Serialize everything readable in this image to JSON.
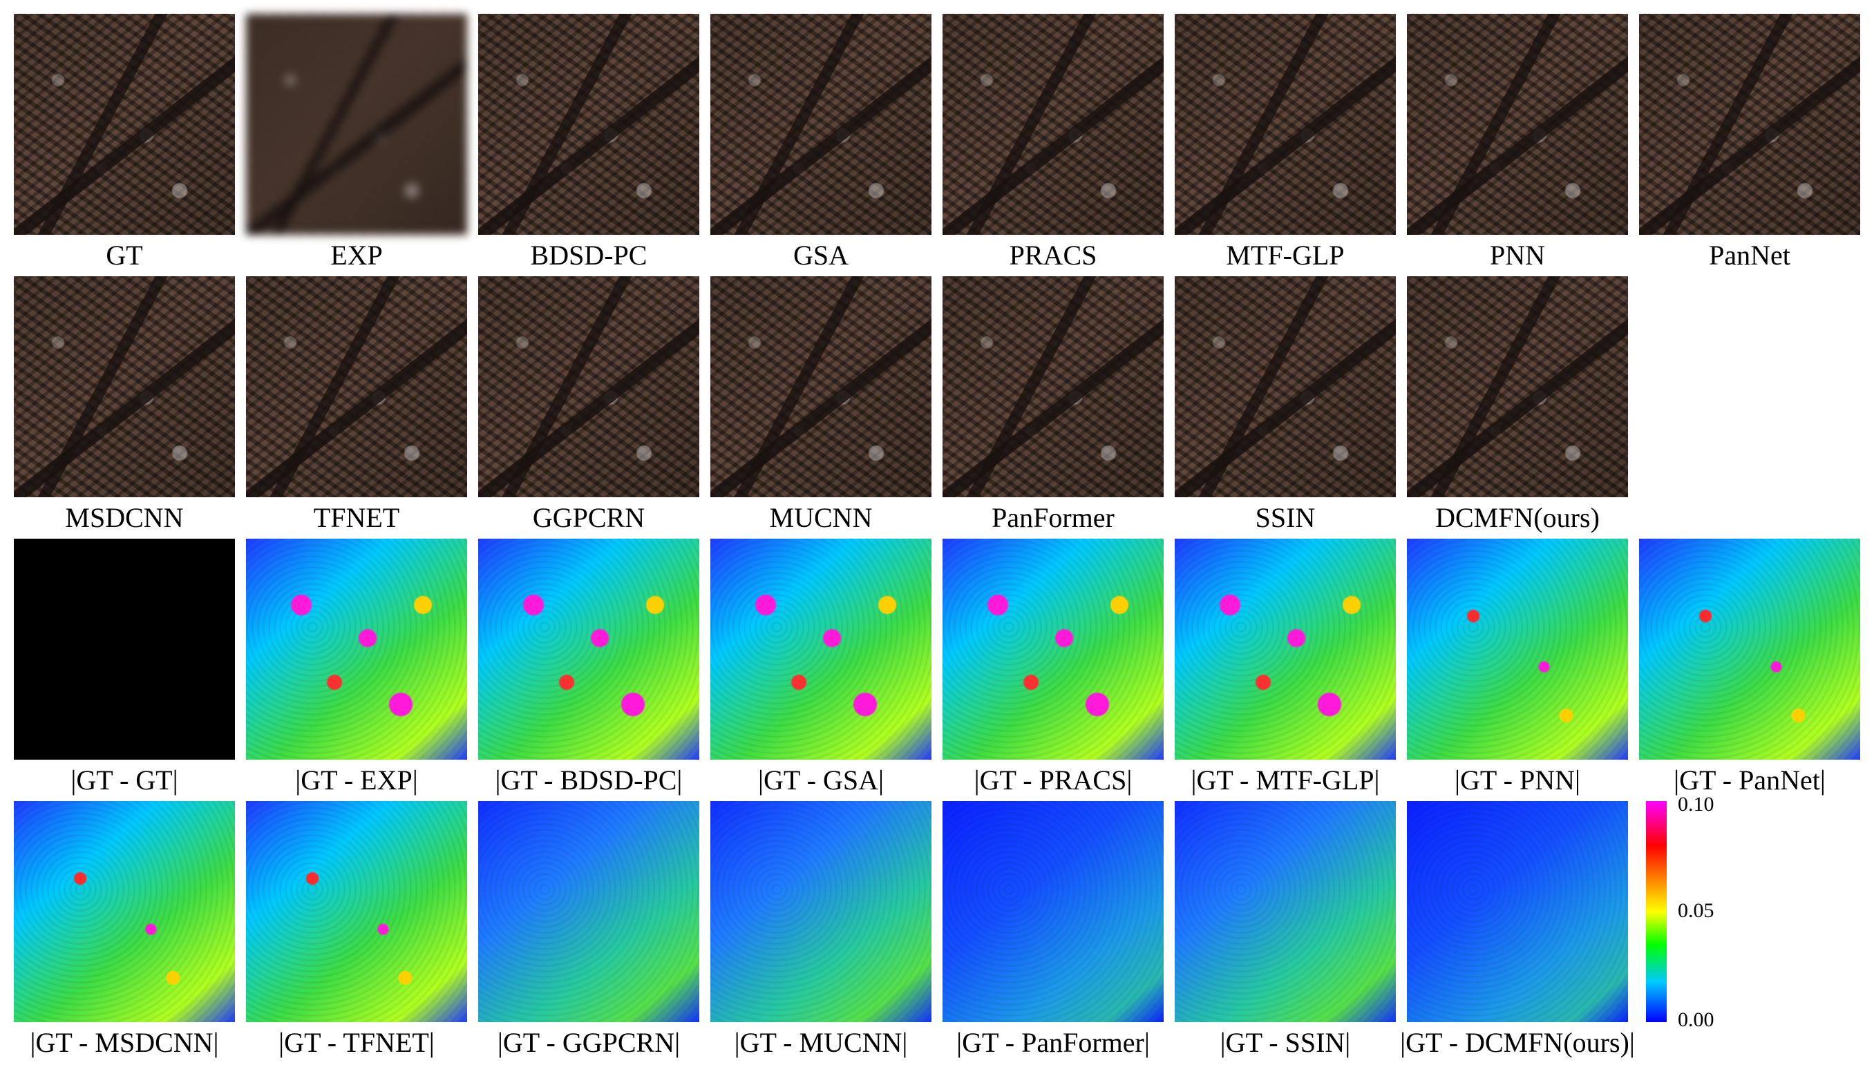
{
  "colors": {
    "colorbar": [
      "#ff00ff",
      "#ff0000",
      "#ff8000",
      "#ffff00",
      "#00ff00",
      "#00c8ff",
      "#0000ff"
    ]
  },
  "rows": {
    "row1": [
      "GT",
      "EXP",
      "BDSD-PC",
      "GSA",
      "PRACS",
      "MTF-GLP",
      "PNN",
      "PanNet"
    ],
    "row2": [
      "MSDCNN",
      "TFNET",
      "GGPCRN",
      "MUCNN",
      "PanFormer",
      "SSIN",
      "DCMFN(ours)"
    ],
    "row3": [
      "|GT - GT|",
      "|GT - EXP|",
      "|GT - BDSD-PC|",
      "|GT - GSA|",
      "|GT - PRACS|",
      "|GT - MTF-GLP|",
      "|GT - PNN|",
      "|GT - PanNet|"
    ],
    "row4": [
      "|GT - MSDCNN|",
      "|GT - TFNET|",
      "|GT - GGPCRN|",
      "|GT - MUCNN|",
      "|GT - PanFormer|",
      "|GT - SSIN|",
      "|GT - DCMFN(ours)|"
    ]
  },
  "colorbar": {
    "max": "0.10",
    "mid": "0.05",
    "min": "0.00"
  }
}
